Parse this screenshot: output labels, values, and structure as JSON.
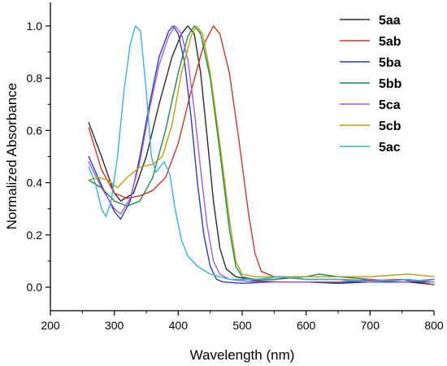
{
  "chart_data": {
    "type": "line",
    "title": "",
    "xlabel": "Wavelength (nm)",
    "ylabel": "Normalized Absorbance",
    "xlim": [
      200,
      800
    ],
    "ylim": [
      -0.09,
      1.09
    ],
    "xticks": [
      200,
      300,
      400,
      500,
      600,
      700,
      800
    ],
    "yticks": [
      0.0,
      0.2,
      0.4,
      0.6,
      0.8,
      1.0
    ],
    "x_tick_labels": [
      "200",
      "300",
      "400",
      "500",
      "600",
      "700",
      "800"
    ],
    "y_tick_labels": [
      "0.0",
      "0.2",
      "0.4",
      "0.6",
      "0.8",
      "1.0"
    ],
    "grid": false,
    "legend_position": "top-right",
    "series": [
      {
        "name": "5aa",
        "color": "#2b2b2b",
        "points": [
          [
            260,
            0.63
          ],
          [
            280,
            0.5
          ],
          [
            300,
            0.36
          ],
          [
            310,
            0.33
          ],
          [
            330,
            0.36
          ],
          [
            350,
            0.5
          ],
          [
            370,
            0.7
          ],
          [
            390,
            0.88
          ],
          [
            405,
            0.97
          ],
          [
            415,
            1.0
          ],
          [
            425,
            0.97
          ],
          [
            435,
            0.82
          ],
          [
            445,
            0.58
          ],
          [
            455,
            0.33
          ],
          [
            465,
            0.15
          ],
          [
            475,
            0.07
          ],
          [
            490,
            0.04
          ],
          [
            520,
            0.025
          ],
          [
            560,
            0.02
          ],
          [
            600,
            0.02
          ],
          [
            650,
            0.015
          ],
          [
            700,
            0.02
          ],
          [
            760,
            0.02
          ],
          [
            800,
            0.01
          ]
        ]
      },
      {
        "name": "5ab",
        "color": "#c0392b",
        "points": [
          [
            260,
            0.61
          ],
          [
            280,
            0.45
          ],
          [
            300,
            0.36
          ],
          [
            320,
            0.34
          ],
          [
            340,
            0.35
          ],
          [
            360,
            0.37
          ],
          [
            380,
            0.42
          ],
          [
            400,
            0.55
          ],
          [
            420,
            0.75
          ],
          [
            440,
            0.93
          ],
          [
            455,
            1.0
          ],
          [
            465,
            0.97
          ],
          [
            480,
            0.82
          ],
          [
            495,
            0.56
          ],
          [
            510,
            0.28
          ],
          [
            520,
            0.13
          ],
          [
            530,
            0.06
          ],
          [
            550,
            0.04
          ],
          [
            600,
            0.03
          ],
          [
            650,
            0.03
          ],
          [
            700,
            0.025
          ],
          [
            750,
            0.03
          ],
          [
            800,
            0.01
          ]
        ]
      },
      {
        "name": "5ba",
        "color": "#2c3fa8",
        "points": [
          [
            260,
            0.5
          ],
          [
            280,
            0.39
          ],
          [
            300,
            0.29
          ],
          [
            310,
            0.26
          ],
          [
            325,
            0.33
          ],
          [
            340,
            0.5
          ],
          [
            355,
            0.7
          ],
          [
            370,
            0.88
          ],
          [
            385,
            0.98
          ],
          [
            392,
            1.0
          ],
          [
            400,
            0.97
          ],
          [
            410,
            0.86
          ],
          [
            420,
            0.65
          ],
          [
            430,
            0.4
          ],
          [
            440,
            0.2
          ],
          [
            450,
            0.08
          ],
          [
            460,
            0.03
          ],
          [
            470,
            0.02
          ],
          [
            500,
            0.015
          ],
          [
            550,
            0.02
          ],
          [
            600,
            0.02
          ],
          [
            650,
            0.02
          ],
          [
            700,
            0.02
          ],
          [
            750,
            0.02
          ],
          [
            800,
            0.02
          ]
        ]
      },
      {
        "name": "5bb",
        "color": "#1e8a4c",
        "points": [
          [
            260,
            0.41
          ],
          [
            280,
            0.38
          ],
          [
            300,
            0.33
          ],
          [
            320,
            0.31
          ],
          [
            340,
            0.33
          ],
          [
            360,
            0.42
          ],
          [
            380,
            0.6
          ],
          [
            400,
            0.82
          ],
          [
            415,
            0.96
          ],
          [
            425,
            1.0
          ],
          [
            435,
            0.97
          ],
          [
            450,
            0.8
          ],
          [
            465,
            0.52
          ],
          [
            480,
            0.22
          ],
          [
            490,
            0.08
          ],
          [
            500,
            0.04
          ],
          [
            520,
            0.03
          ],
          [
            550,
            0.03
          ],
          [
            600,
            0.04
          ],
          [
            620,
            0.05
          ],
          [
            650,
            0.04
          ],
          [
            700,
            0.03
          ],
          [
            750,
            0.02
          ],
          [
            800,
            0.03
          ]
        ]
      },
      {
        "name": "5ca",
        "color": "#a35cd6",
        "points": [
          [
            260,
            0.48
          ],
          [
            280,
            0.38
          ],
          [
            300,
            0.3
          ],
          [
            310,
            0.28
          ],
          [
            325,
            0.34
          ],
          [
            340,
            0.48
          ],
          [
            355,
            0.68
          ],
          [
            370,
            0.85
          ],
          [
            385,
            0.96
          ],
          [
            395,
            1.0
          ],
          [
            405,
            0.97
          ],
          [
            415,
            0.87
          ],
          [
            425,
            0.68
          ],
          [
            435,
            0.45
          ],
          [
            445,
            0.24
          ],
          [
            455,
            0.1
          ],
          [
            465,
            0.05
          ],
          [
            480,
            0.03
          ],
          [
            520,
            0.02
          ],
          [
            560,
            0.02
          ],
          [
            600,
            0.02
          ],
          [
            650,
            0.02
          ],
          [
            700,
            0.03
          ],
          [
            750,
            0.02
          ],
          [
            800,
            0.03
          ]
        ]
      },
      {
        "name": "5cb",
        "color": "#b5a114",
        "points": [
          [
            260,
            0.41
          ],
          [
            275,
            0.42
          ],
          [
            290,
            0.41
          ],
          [
            305,
            0.38
          ],
          [
            320,
            0.42
          ],
          [
            340,
            0.46
          ],
          [
            360,
            0.47
          ],
          [
            375,
            0.5
          ],
          [
            390,
            0.62
          ],
          [
            405,
            0.82
          ],
          [
            420,
            0.96
          ],
          [
            428,
            1.0
          ],
          [
            438,
            0.97
          ],
          [
            450,
            0.82
          ],
          [
            465,
            0.55
          ],
          [
            480,
            0.26
          ],
          [
            490,
            0.1
          ],
          [
            500,
            0.05
          ],
          [
            520,
            0.04
          ],
          [
            560,
            0.04
          ],
          [
            600,
            0.04
          ],
          [
            650,
            0.04
          ],
          [
            700,
            0.04
          ],
          [
            760,
            0.05
          ],
          [
            800,
            0.04
          ]
        ]
      },
      {
        "name": "5ac",
        "color": "#3ab0d6",
        "points": [
          [
            260,
            0.46
          ],
          [
            270,
            0.4
          ],
          [
            280,
            0.3
          ],
          [
            287,
            0.27
          ],
          [
            295,
            0.33
          ],
          [
            305,
            0.5
          ],
          [
            315,
            0.75
          ],
          [
            325,
            0.93
          ],
          [
            333,
            1.0
          ],
          [
            341,
            0.98
          ],
          [
            350,
            0.75
          ],
          [
            358,
            0.5
          ],
          [
            365,
            0.44
          ],
          [
            378,
            0.48
          ],
          [
            387,
            0.43
          ],
          [
            395,
            0.3
          ],
          [
            405,
            0.18
          ],
          [
            415,
            0.12
          ],
          [
            430,
            0.08
          ],
          [
            450,
            0.05
          ],
          [
            480,
            0.03
          ],
          [
            520,
            0.03
          ],
          [
            560,
            0.04
          ],
          [
            600,
            0.03
          ],
          [
            650,
            0.03
          ],
          [
            700,
            0.02
          ],
          [
            760,
            0.03
          ],
          [
            800,
            0.02
          ]
        ]
      }
    ]
  }
}
